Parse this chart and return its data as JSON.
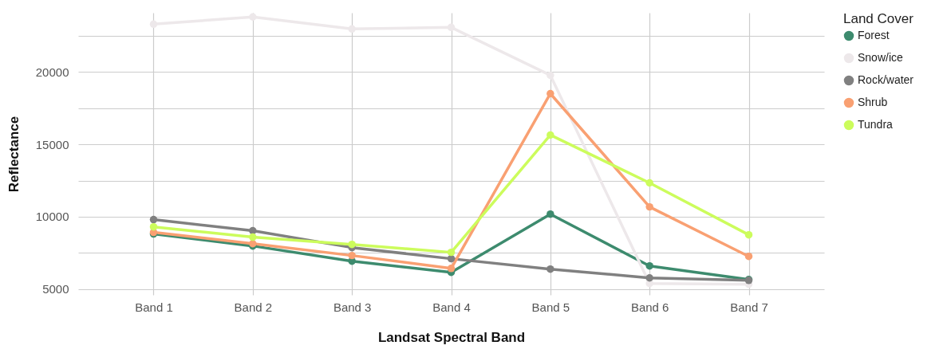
{
  "chart_data": {
    "type": "line",
    "xlabel": "Landsat Spectral Band",
    "ylabel": "Reflectance",
    "legend_title": "Land Cover",
    "categories": [
      "Band 1",
      "Band 2",
      "Band 3",
      "Band 4",
      "Band 5",
      "Band 6",
      "Band 7"
    ],
    "series": [
      {
        "name": "Forest",
        "color": "#3d8b6e",
        "values": [
          8810,
          7980,
          6930,
          6160,
          10180,
          6600,
          5660
        ]
      },
      {
        "name": "Snow/ice",
        "color": "#ede8ea",
        "values": [
          23310,
          23810,
          22980,
          23090,
          19780,
          5390,
          5330
        ]
      },
      {
        "name": "Rock/water",
        "color": "#808080",
        "values": [
          9800,
          9030,
          7870,
          7100,
          6380,
          5770,
          5600
        ]
      },
      {
        "name": "Shrub",
        "color": "#f9a072",
        "values": [
          8920,
          8140,
          7320,
          6430,
          18510,
          10680,
          7260
        ]
      },
      {
        "name": "Tundra",
        "color": "#ccfc5c",
        "values": [
          9300,
          8590,
          8090,
          7540,
          15650,
          12340,
          8750
        ]
      }
    ],
    "ylim": [
      4600,
      24100
    ],
    "yticks": [
      5000,
      {
        "value": 7500,
        "label": null
      },
      10000,
      {
        "value": 12500,
        "label": null
      },
      15000,
      {
        "value": 17500,
        "label": null
      },
      20000,
      {
        "value": 22500,
        "label": null
      }
    ],
    "grid": true,
    "legend": "right",
    "marker": "circle",
    "line_style": "solid"
  }
}
